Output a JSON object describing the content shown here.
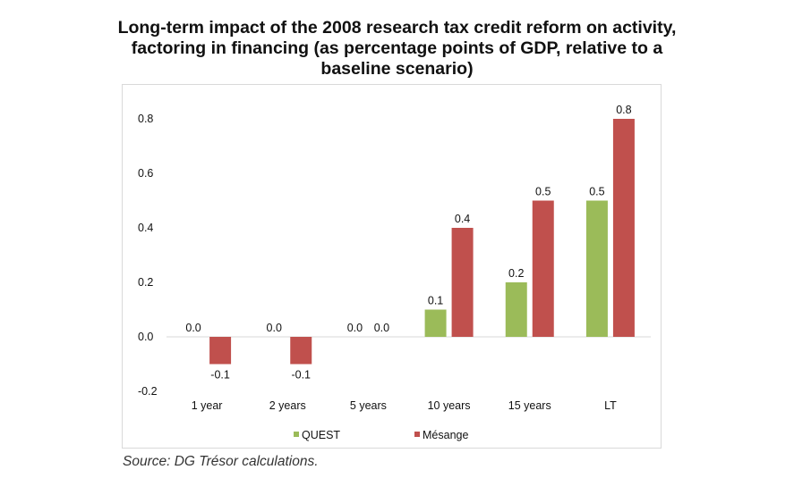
{
  "chart_data": {
    "type": "bar",
    "title": "Long-term impact of the 2008 research tax credit reform on activity, factoring in financing (as percentage points of GDP, relative to a baseline scenario)",
    "title_lines": [
      "Long-term impact of the 2008 research tax credit reform on activity,",
      "factoring in financing (as percentage points of GDP, relative to a",
      "baseline scenario)"
    ],
    "xlabel": "",
    "ylabel": "",
    "categories": [
      "1 year",
      "2 years",
      "5 years",
      "10 years",
      "15 years",
      "LT"
    ],
    "series": [
      {
        "name": "QUEST",
        "color": "#9BBB59",
        "values": [
          0.0,
          0.0,
          0.0,
          0.1,
          0.2,
          0.5
        ],
        "labels": [
          "0.0",
          "0.0",
          "0.0",
          "0.1",
          "0.2",
          "0.5"
        ]
      },
      {
        "name": "Mésange",
        "color": "#C0504D",
        "values": [
          -0.1,
          -0.1,
          0.0,
          0.4,
          0.5,
          0.8
        ],
        "labels": [
          "-0.1",
          "-0.1",
          "0.0",
          "0.4",
          "0.5",
          "0.8"
        ]
      }
    ],
    "ylim": [
      -0.2,
      0.8
    ],
    "yticks": [
      -0.2,
      0.0,
      0.2,
      0.4,
      0.6,
      0.8
    ],
    "ytick_labels": [
      "-0.2",
      "0.0",
      "0.2",
      "0.4",
      "0.6",
      "0.8"
    ],
    "grid": false,
    "legend_position": "bottom",
    "source": "Source: DG Trésor calculations."
  }
}
